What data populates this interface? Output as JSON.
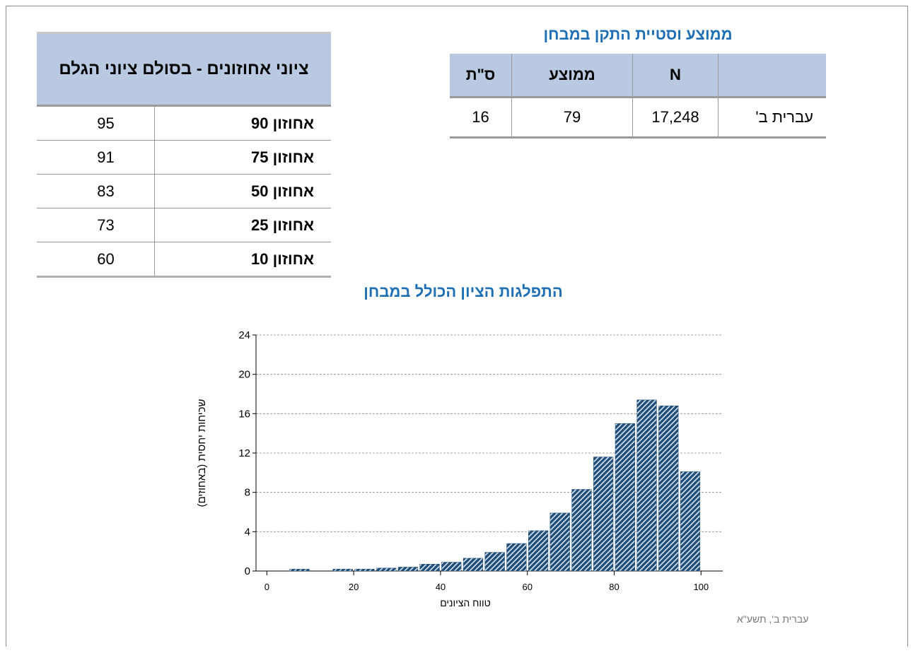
{
  "percentile_table": {
    "title": "ציוני אחוזונים - בסולם ציוני הגלם",
    "rows": [
      [
        "אחוזון 90",
        "95"
      ],
      [
        "אחוזון 75",
        "91"
      ],
      [
        "אחוזון 50",
        "83"
      ],
      [
        "אחוזון 25",
        "73"
      ],
      [
        "אחוזון 10",
        "60"
      ]
    ]
  },
  "stats_table": {
    "title": "ממוצע וסטיית התקן במבחן",
    "header": [
      "N",
      "ממוצע",
      "ס\"ת"
    ],
    "rows": [
      [
        "עברית ב'",
        "17,248",
        "79",
        "16"
      ]
    ]
  },
  "chart_data": {
    "type": "histogram",
    "title": "התפלגות הציון הכולל במבחן",
    "x_label": "טווח הציונים",
    "y_label": "שכיחות   יחסית   (באחוזים)",
    "note": "עברית ב',   תשע\"א",
    "bins": [
      5,
      10,
      15,
      20,
      25,
      30,
      35,
      40,
      45,
      50,
      55,
      60,
      65,
      70,
      75,
      80,
      85,
      90,
      95,
      100
    ],
    "counts": [
      0.2,
      0,
      0.2,
      0.2,
      0.3,
      0.4,
      0.7,
      0.9,
      1.3,
      1.9,
      2.8,
      4.1,
      5.9,
      8.3,
      11.6,
      15.0,
      17.4,
      16.8,
      10.1
    ],
    "color": "#1f4e79",
    "xlim": [
      -2.5,
      105
    ],
    "xticks": [
      0,
      20,
      40,
      60,
      80,
      100
    ],
    "ylim": [
      0,
      24
    ],
    "yticks": [
      0,
      4,
      8,
      12,
      16,
      20,
      24
    ],
    "grid": true
  }
}
